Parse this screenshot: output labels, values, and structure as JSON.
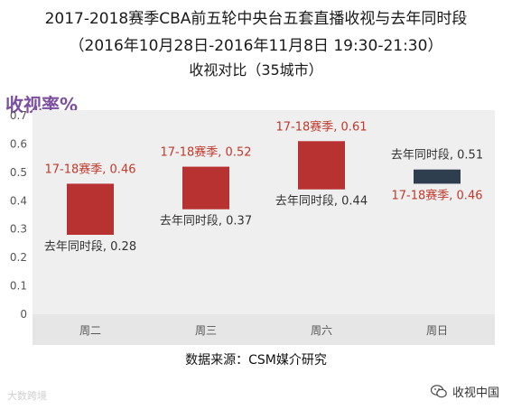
{
  "title_line1": "2017-2018赛季CBA前五轮中央台五套直播收视与去年同时段",
  "title_line2": "（2016年10月28日-2016年11月8日 19:30-21:30）",
  "title_line3": "收视对比（35城市）",
  "ylabel": "收视率%",
  "source": "数据来源：CSM媒介研究",
  "watermark_left": "大数跨境",
  "watermark_right": "收视中国",
  "colors": {
    "current_bar": "#b83232",
    "decline_bar": "#2e3e4e",
    "current_label": "#c0392b",
    "last_label": "#333333",
    "title_purple": "#7b4f9d",
    "plot_bg": "#efefef",
    "band_bg": "#e6e6e6"
  },
  "chart_data": {
    "type": "bar",
    "title": "2017-2018赛季CBA前五轮中央台五套直播收视与去年同时段（2016年10月28日-2016年11月8日 19:30-21:30）收视对比（35城市）",
    "ylabel": "收视率%",
    "ylim": [
      0,
      0.7
    ],
    "yticks": [
      "0",
      "0.1",
      "0.2",
      "0.3",
      "0.4",
      "0.5",
      "0.6",
      "0.7"
    ],
    "categories": [
      "周二",
      "周三",
      "周六",
      "周日"
    ],
    "series": [
      {
        "name": "17-18赛季",
        "values": [
          0.46,
          0.52,
          0.61,
          0.46
        ]
      },
      {
        "name": "去年同时段",
        "values": [
          0.28,
          0.37,
          0.44,
          0.51
        ]
      }
    ],
    "labels_current": [
      "17-18赛季, 0.46",
      "17-18赛季, 0.52",
      "17-18赛季, 0.61",
      "17-18赛季, 0.46"
    ],
    "labels_last": [
      "去年同时段, 0.28",
      "去年同时段, 0.37",
      "去年同时段, 0.44",
      "去年同时段, 0.51"
    ],
    "grid": false
  }
}
